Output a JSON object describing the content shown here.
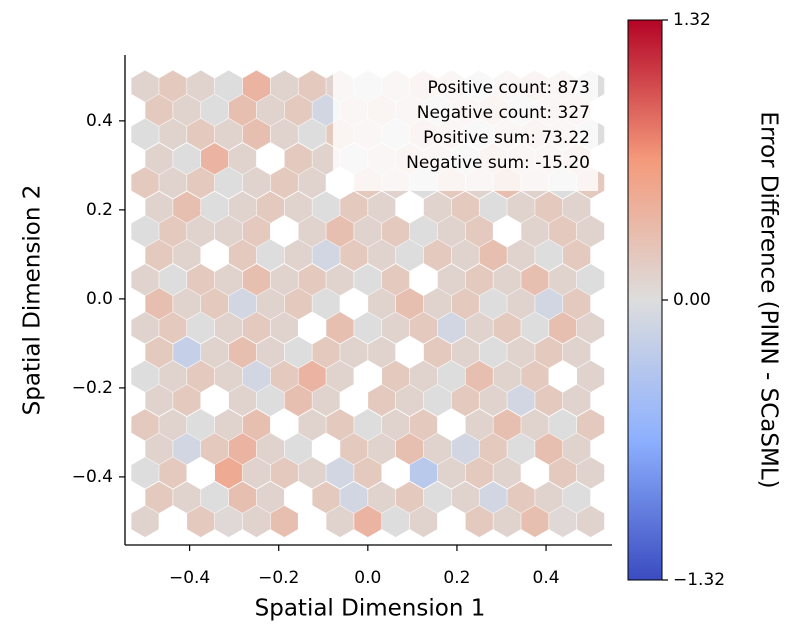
{
  "chart_data": {
    "type": "hexbin",
    "xlabel": "Spatial Dimension 1",
    "ylabel": "Spatial Dimension 2",
    "colorbar_label": "Error Difference (PINN - SCaSML)",
    "annotations": [
      "Positive count: 873",
      "Negative count: 327",
      "Positive sum: 73.22",
      "Negative sum: -15.20"
    ],
    "xlim": [
      -0.545,
      0.548
    ],
    "ylim": [
      -0.553,
      0.548
    ],
    "xticks": [
      {
        "value": -0.4,
        "label": "−0.4"
      },
      {
        "value": -0.2,
        "label": "−0.2"
      },
      {
        "value": 0,
        "label": "0.0"
      },
      0.2,
      0.4
    ],
    "yticks": [
      {
        "value": -0.4,
        "label": "−0.4"
      },
      {
        "value": -0.2,
        "label": "−0.2"
      },
      {
        "value": 0,
        "label": "0.0"
      },
      0.2,
      0.4
    ],
    "clim": [
      -1.32,
      1.32
    ],
    "cticks": [
      {
        "value": -1.32,
        "label": "−1.32"
      },
      {
        "value": 0,
        "label": "0.00"
      },
      1.32
    ],
    "colormap": [
      "#3b4cc0",
      "#8db0fe",
      "#dddddd",
      "#f49a7b",
      "#b40426"
    ],
    "x_even_rows": [
      -0.5,
      -0.4375,
      -0.375,
      -0.3125,
      -0.25,
      -0.1875,
      -0.125,
      -0.0625,
      0,
      0.0625,
      0.125,
      0.1875,
      0.25,
      0.3125,
      0.375,
      0.4375,
      0.5
    ],
    "x_odd_rows": [
      -0.46875,
      -0.40625,
      -0.34375,
      -0.28125,
      -0.21875,
      -0.15625,
      -0.09375,
      -0.03125,
      0.03125,
      0.09375,
      0.15625,
      0.21875,
      0.28125,
      0.34375,
      0.40625,
      0.46875
    ],
    "y_rows": [
      -0.5,
      -0.446,
      -0.391,
      -0.337,
      -0.283,
      -0.228,
      -0.174,
      -0.12,
      -0.065,
      -0.011,
      0.043,
      0.098,
      0.152,
      0.206,
      0.261,
      0.315,
      0.37,
      0.424,
      0.478
    ],
    "values": [
      [
        0.1,
        null,
        0.2,
        0.05,
        0.1,
        0.3,
        null,
        0.1,
        0.4,
        0.0,
        0.1,
        null,
        0.2,
        0.1,
        0.3,
        0.05,
        0.1
      ],
      [
        0.2,
        0.1,
        0.0,
        0.3,
        0.1,
        null,
        0.2,
        -0.1,
        0.1,
        0.2,
        0.0,
        0.1,
        -0.1,
        0.2,
        0.1,
        0.0
      ],
      [
        0.0,
        0.2,
        null,
        0.5,
        0.1,
        0.2,
        0.1,
        -0.1,
        0.2,
        null,
        -0.3,
        0.1,
        0.2,
        0.1,
        null,
        0.2,
        0.1
      ],
      [
        0.1,
        -0.1,
        0.2,
        0.4,
        0.1,
        0.0,
        null,
        0.2,
        0.1,
        0.3,
        0.1,
        -0.1,
        0.2,
        0.0,
        0.3,
        0.1
      ],
      [
        0.2,
        0.1,
        0.0,
        0.1,
        0.3,
        null,
        0.1,
        0.2,
        0.0,
        0.1,
        0.2,
        null,
        0.1,
        0.3,
        0.1,
        0.0,
        0.2
      ],
      [
        0.1,
        0.2,
        null,
        0.1,
        0.0,
        0.3,
        0.1,
        null,
        0.2,
        0.1,
        0.0,
        0.2,
        0.1,
        -0.1,
        0.2,
        0.1
      ],
      [
        0.0,
        0.1,
        0.2,
        0.1,
        -0.1,
        0.2,
        0.4,
        0.1,
        null,
        0.2,
        0.1,
        0.0,
        0.3,
        0.1,
        0.2,
        null,
        0.1
      ],
      [
        0.2,
        -0.2,
        0.1,
        0.3,
        0.1,
        0.0,
        0.2,
        0.1,
        0.1,
        null,
        0.2,
        0.1,
        0.0,
        0.1,
        0.2,
        0.1
      ],
      [
        0.1,
        0.2,
        0.0,
        0.1,
        0.2,
        0.1,
        null,
        0.3,
        0.0,
        0.1,
        0.2,
        -0.1,
        0.1,
        0.2,
        0.0,
        0.3,
        0.1
      ],
      [
        0.3,
        0.1,
        0.2,
        -0.1,
        0.1,
        0.2,
        0.0,
        null,
        0.1,
        0.3,
        0.1,
        0.2,
        0.0,
        0.1,
        -0.1,
        0.2
      ],
      [
        0.1,
        0.0,
        0.2,
        0.1,
        0.3,
        0.1,
        0.2,
        0.1,
        0.0,
        0.2,
        null,
        0.1,
        0.2,
        0.1,
        0.3,
        0.1,
        0.0
      ],
      [
        0.2,
        0.1,
        null,
        0.2,
        0.0,
        0.1,
        -0.1,
        0.2,
        0.1,
        0.0,
        0.2,
        0.1,
        0.3,
        0.1,
        0.0,
        0.2
      ],
      [
        0.0,
        0.2,
        0.1,
        0.1,
        0.2,
        null,
        0.1,
        0.3,
        0.1,
        0.2,
        0.0,
        0.1,
        0.2,
        null,
        0.1,
        0.2,
        0.1
      ],
      [
        0.1,
        0.3,
        0.0,
        0.1,
        0.2,
        0.1,
        0.0,
        0.2,
        0.1,
        null,
        0.1,
        0.2,
        0.0,
        0.1,
        0.2,
        0.1
      ],
      [
        0.2,
        0.1,
        0.2,
        0.0,
        0.1,
        0.2,
        0.1,
        null,
        0.2,
        0.1,
        0.0,
        0.2,
        0.1,
        0.3,
        0.1,
        0.0,
        0.2
      ],
      [
        0.1,
        0.0,
        0.4,
        0.1,
        null,
        0.2,
        0.1,
        0.0,
        0.1,
        0.2,
        0.1,
        0.0,
        0.2,
        0.1,
        0.1,
        0.2
      ],
      [
        0.0,
        0.1,
        0.2,
        0.1,
        0.3,
        0.1,
        0.0,
        0.2,
        0.1,
        0.0,
        0.2,
        0.1,
        0.0,
        0.1,
        0.2,
        0.1,
        0.0
      ],
      [
        0.2,
        0.1,
        0.0,
        0.3,
        0.1,
        0.2,
        -0.1,
        0.1,
        0.2,
        0.1,
        0.0,
        0.1,
        0.2,
        0.0,
        0.1,
        0.1
      ],
      [
        0.1,
        0.2,
        0.1,
        0.0,
        0.4,
        0.1,
        0.2,
        0.1,
        0.0,
        0.1,
        0.2,
        0.1,
        0.0,
        0.1,
        0.2,
        0.1,
        0.0
      ]
    ]
  }
}
